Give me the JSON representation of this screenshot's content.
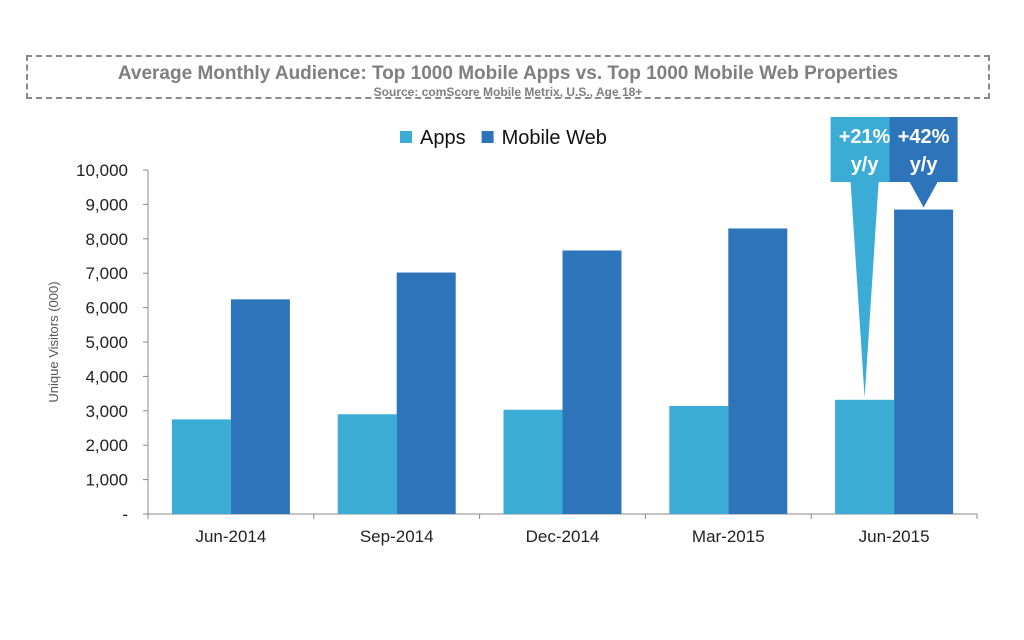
{
  "chart_data": {
    "type": "bar",
    "title": "Average Monthly Audience: Top 1000 Mobile Apps vs. Top 1000 Mobile Web Properties",
    "subtitle": "Source: comScore Mobile Metrix, U.S., Age 18+",
    "ylabel": "Unique Visitors (000)",
    "xlabel": "",
    "ylim": [
      0,
      10000
    ],
    "yticks": [
      0,
      1000,
      2000,
      3000,
      4000,
      5000,
      6000,
      7000,
      8000,
      9000,
      10000
    ],
    "ytick_labels": [
      "-",
      "1,000",
      "2,000",
      "3,000",
      "4,000",
      "5,000",
      "6,000",
      "7,000",
      "8,000",
      "9,000",
      "10,000"
    ],
    "categories": [
      "Jun-2014",
      "Sep-2014",
      "Dec-2014",
      "Mar-2015",
      "Jun-2015"
    ],
    "series": [
      {
        "name": "Apps",
        "color": "#3AACD5",
        "values": [
          2750,
          2900,
          3030,
          3140,
          3320
        ]
      },
      {
        "name": "Mobile Web",
        "color": "#2E74BA",
        "values": [
          6240,
          7020,
          7660,
          8300,
          8850
        ]
      }
    ],
    "legend": "top-center",
    "grid": false,
    "annotations": [
      {
        "series": "Apps",
        "category": "Jun-2015",
        "line1": "+21%",
        "line2": "y/y",
        "color": "#3AACD5"
      },
      {
        "series": "Mobile Web",
        "category": "Jun-2015",
        "line1": "+42%",
        "line2": "y/y",
        "color": "#2E74BA"
      }
    ]
  }
}
